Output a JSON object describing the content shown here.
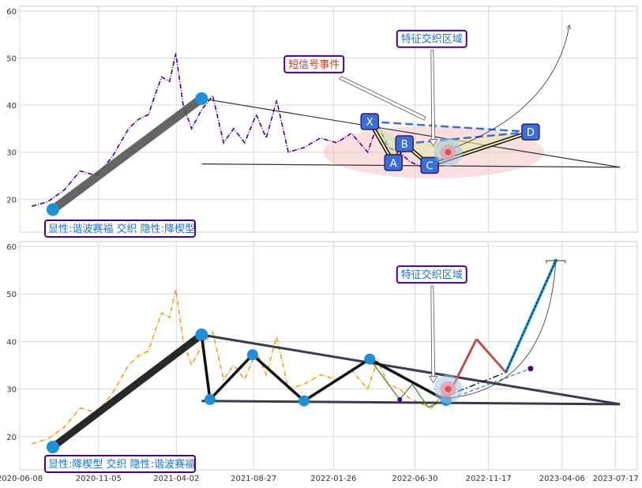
{
  "chart_data": [
    {
      "type": "line",
      "panel": "top",
      "xlim": [
        "2020-06-08",
        "2023-08-27"
      ],
      "ylim": [
        13,
        61
      ],
      "yticks": [
        20,
        30,
        40,
        50,
        60
      ],
      "grid": true,
      "colors": {
        "price": "#4b0082",
        "accent": "#1f8fd6",
        "label": "#1e6fc8",
        "box_border": "#4b0082"
      },
      "series": [
        {
          "x": [
            "2020-07-01",
            "2020-08-01",
            "2020-09-01",
            "2020-10-01",
            "2020-11-01",
            "2020-12-01",
            "2021-01-01",
            "2021-01-20",
            "2021-02-08",
            "2021-02-20",
            "2021-03-05",
            "2021-03-20",
            "2021-04-01",
            "2021-04-15",
            "2021-05-01",
            "2021-05-20",
            "2021-06-10",
            "2021-07-01",
            "2021-07-20",
            "2021-08-10",
            "2021-09-01",
            "2021-09-20",
            "2021-10-10",
            "2021-11-01",
            "2021-12-01",
            "2022-01-01",
            "2022-02-01",
            "2022-03-01",
            "2022-04-01",
            "2022-04-20",
            "2022-05-10",
            "2022-06-01",
            "2022-06-20",
            "2022-07-10",
            "2022-08-01",
            "2022-08-15",
            "2022-08-25"
          ],
          "values": [
            18.5,
            19.5,
            22,
            26,
            25,
            29,
            35,
            37,
            38,
            42,
            46,
            45,
            51,
            40,
            35,
            39,
            42,
            32,
            35,
            32,
            38,
            33,
            41,
            30,
            31,
            33,
            32,
            34,
            30,
            36,
            31,
            30,
            28,
            27,
            26,
            28,
            29.5
          ]
        }
      ],
      "pattern_line": {
        "x": [
          "2020-08-10",
          "2021-05-20"
        ],
        "values": [
          17.8,
          41.4
        ]
      },
      "triangle": {
        "upper": {
          "x": [
            "2021-05-20",
            "2023-07-25"
          ],
          "values": [
            41.4,
            26.8
          ]
        },
        "lower": {
          "x": [
            "2021-05-20",
            "2023-07-25"
          ],
          "values": [
            27.5,
            26.8
          ]
        }
      },
      "points": [
        {
          "label": "X",
          "x": "2022-04-05",
          "y": 36.5
        },
        {
          "label": "A",
          "x": "2022-05-20",
          "y": 27.8
        },
        {
          "label": "B",
          "x": "2022-06-10",
          "y": 31.8
        },
        {
          "label": "C",
          "x": "2022-07-28",
          "y": 27.2
        },
        {
          "label": "D",
          "x": "2023-02-05",
          "y": 34.3
        }
      ],
      "signal_point": {
        "x": "2022-09-01",
        "y": 30
      },
      "annotations": [
        {
          "text": "特征交织区域",
          "x": "2022-08-01",
          "y": 54
        },
        {
          "text": "短信号事件",
          "x": "2021-12-20",
          "y": 48.6
        }
      ],
      "legend_text": "显性:谐波赛福 交织 隐性:降楔型"
    },
    {
      "type": "line",
      "panel": "bottom",
      "xlim": [
        "2020-06-08",
        "2023-08-27"
      ],
      "ylim": [
        13,
        61
      ],
      "yticks": [
        20,
        30,
        40,
        50,
        60
      ],
      "xticks": [
        "2020-06-08",
        "2020-11-05",
        "2021-04-02",
        "2021-08-27",
        "2022-01-26",
        "2022-06-30",
        "2022-11-17",
        "2023-04-06",
        "2023-07-17"
      ],
      "grid": true,
      "colors": {
        "price": "#e8a317",
        "accent": "#1f8fd6",
        "label": "#1e6fc8",
        "box_border": "#4b0082"
      },
      "series": [
        {
          "x": [
            "2020-07-01",
            "2020-08-01",
            "2020-09-01",
            "2020-10-01",
            "2020-11-01",
            "2020-12-01",
            "2021-01-01",
            "2021-01-20",
            "2021-02-08",
            "2021-02-20",
            "2021-03-05",
            "2021-03-20",
            "2021-04-01",
            "2021-04-15",
            "2021-05-01",
            "2021-05-20",
            "2021-06-10",
            "2021-07-01",
            "2021-07-20",
            "2021-08-10",
            "2021-09-01",
            "2021-09-20",
            "2021-10-10",
            "2021-11-01",
            "2021-12-01",
            "2022-01-01",
            "2022-02-01",
            "2022-03-01",
            "2022-04-01",
            "2022-04-20",
            "2022-05-10",
            "2022-06-01",
            "2022-06-20",
            "2022-07-10",
            "2022-08-01",
            "2022-08-15",
            "2022-08-25"
          ],
          "values": [
            18.5,
            19.5,
            22,
            26,
            25,
            29,
            35,
            37,
            38,
            42,
            46,
            45,
            51,
            40,
            35,
            39,
            42,
            32,
            35,
            32,
            38,
            33,
            41,
            30,
            31,
            33,
            32,
            34,
            30,
            36,
            31,
            30,
            28,
            27,
            26,
            28,
            29.5
          ]
        }
      ],
      "pattern_line": {
        "x": [
          "2020-08-10",
          "2021-05-20"
        ],
        "values": [
          17.8,
          41.4
        ]
      },
      "zigzag": {
        "x": [
          "2021-05-20",
          "2021-06-05",
          "2021-08-25",
          "2021-12-01",
          "2022-04-05",
          "2022-08-28"
        ],
        "values": [
          41.4,
          27.8,
          37.2,
          27.5,
          36.3,
          27.6
        ]
      },
      "triangle": {
        "upper": {
          "x": [
            "2021-05-20",
            "2023-07-25"
          ],
          "values": [
            41.4,
            26.8
          ]
        },
        "lower": {
          "x": [
            "2021-05-20",
            "2023-07-25"
          ],
          "values": [
            27.5,
            26.8
          ]
        }
      },
      "projection": {
        "x": [
          "2022-08-28",
          "2022-10-25",
          "2022-12-20",
          "2023-03-25"
        ],
        "values": [
          27.6,
          40.5,
          33.5,
          57
        ]
      },
      "signal_point": {
        "x": "2022-09-01",
        "y": 30
      },
      "annotations": [
        {
          "text": "特征交织区域",
          "x": "2022-08-01",
          "y": 54
        }
      ],
      "legend_text": "显性:降楔型 交织 隐性:谐波赛福"
    }
  ]
}
